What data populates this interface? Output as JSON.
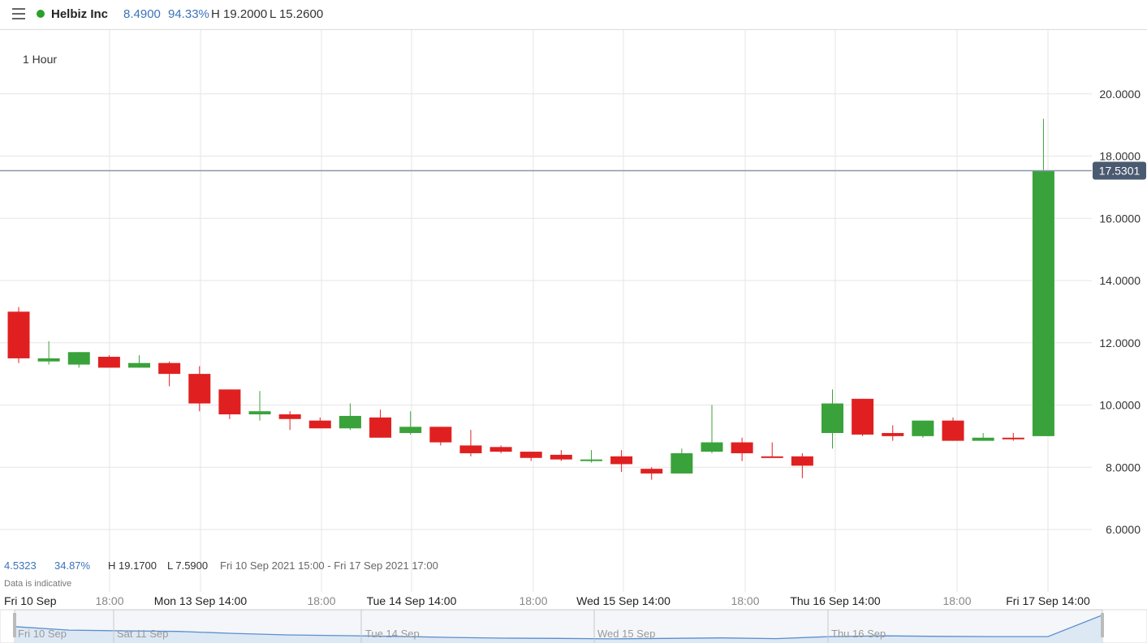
{
  "header": {
    "instrument_name": "Helbiz Inc",
    "price": "8.4900",
    "change_pct": "94.33%",
    "high": "H 19.2000",
    "low": "L 15.2600"
  },
  "interval_label": "1 Hour",
  "current_price_label": "17.5301",
  "range_summary": {
    "change": "4.5323",
    "change_pct": "34.87%",
    "high": "H 19.1700",
    "low": "L 7.5900",
    "range": "Fri 10 Sep 2021 15:00 - Fri 17 Sep 2021 17:00"
  },
  "disclaimer": "Data is indicative",
  "navigator_labels": [
    "Fri 10 Sep",
    "Sat 11 Sep",
    "Tue 14 Sep",
    "Wed 15 Sep",
    "Thu 16 Sep"
  ],
  "colors": {
    "up": "#3aa23a",
    "down": "#e02020",
    "accent": "#3b73b9",
    "price_tag": "#4a5a70"
  },
  "chart_data": {
    "type": "candlestick",
    "y_ticks": [
      "6.0000",
      "8.0000",
      "10.0000",
      "12.0000",
      "14.0000",
      "16.0000",
      "18.0000",
      "20.0000"
    ],
    "ylim": [
      4.2,
      22.0
    ],
    "x_ticks": [
      "Fri 10 Sep",
      "18:00",
      "Mon 13 Sep 14:00",
      "18:00",
      "Tue 14 Sep 14:00",
      "18:00",
      "Wed 15 Sep 14:00",
      "18:00",
      "Thu 16 Sep 14:00",
      "18:00",
      "Fri 17 Sep 14:00"
    ],
    "current_price": 17.5301,
    "candles": [
      {
        "o": 13.0,
        "h": 13.15,
        "l": 11.35,
        "c": 11.5
      },
      {
        "o": 11.4,
        "h": 12.05,
        "l": 11.3,
        "c": 11.5
      },
      {
        "o": 11.3,
        "h": 11.7,
        "l": 11.2,
        "c": 11.7
      },
      {
        "o": 11.55,
        "h": 11.6,
        "l": 11.2,
        "c": 11.2
      },
      {
        "o": 11.2,
        "h": 11.6,
        "l": 11.2,
        "c": 11.35
      },
      {
        "o": 11.35,
        "h": 11.4,
        "l": 10.6,
        "c": 11.0
      },
      {
        "o": 11.0,
        "h": 11.25,
        "l": 9.8,
        "c": 10.05
      },
      {
        "o": 10.5,
        "h": 10.5,
        "l": 9.55,
        "c": 9.7
      },
      {
        "o": 9.7,
        "h": 10.45,
        "l": 9.5,
        "c": 9.8
      },
      {
        "o": 9.7,
        "h": 9.8,
        "l": 9.2,
        "c": 9.55
      },
      {
        "o": 9.5,
        "h": 9.6,
        "l": 9.25,
        "c": 9.25
      },
      {
        "o": 9.25,
        "h": 10.05,
        "l": 9.2,
        "c": 9.65
      },
      {
        "o": 9.6,
        "h": 9.85,
        "l": 8.95,
        "c": 8.95
      },
      {
        "o": 9.1,
        "h": 9.8,
        "l": 9.05,
        "c": 9.3
      },
      {
        "o": 9.3,
        "h": 9.3,
        "l": 8.7,
        "c": 8.8
      },
      {
        "o": 8.7,
        "h": 9.2,
        "l": 8.35,
        "c": 8.45
      },
      {
        "o": 8.65,
        "h": 8.7,
        "l": 8.45,
        "c": 8.5
      },
      {
        "o": 8.5,
        "h": 8.5,
        "l": 8.2,
        "c": 8.3
      },
      {
        "o": 8.4,
        "h": 8.55,
        "l": 8.2,
        "c": 8.25
      },
      {
        "o": 8.2,
        "h": 8.55,
        "l": 8.15,
        "c": 8.25
      },
      {
        "o": 8.35,
        "h": 8.55,
        "l": 7.85,
        "c": 8.1
      },
      {
        "o": 7.95,
        "h": 8.0,
        "l": 7.6,
        "c": 7.8
      },
      {
        "o": 7.8,
        "h": 8.6,
        "l": 7.8,
        "c": 8.45
      },
      {
        "o": 8.5,
        "h": 10.0,
        "l": 8.45,
        "c": 8.8
      },
      {
        "o": 8.8,
        "h": 8.95,
        "l": 8.2,
        "c": 8.45
      },
      {
        "o": 8.35,
        "h": 8.8,
        "l": 8.33,
        "c": 8.33
      },
      {
        "o": 8.35,
        "h": 8.45,
        "l": 7.65,
        "c": 8.05
      },
      {
        "o": 9.1,
        "h": 10.5,
        "l": 8.6,
        "c": 10.05
      },
      {
        "o": 10.2,
        "h": 10.2,
        "l": 9.0,
        "c": 9.05
      },
      {
        "o": 9.1,
        "h": 9.35,
        "l": 8.85,
        "c": 9.0
      },
      {
        "o": 9.0,
        "h": 9.5,
        "l": 8.95,
        "c": 9.5
      },
      {
        "o": 9.5,
        "h": 9.6,
        "l": 8.85,
        "c": 8.85
      },
      {
        "o": 8.85,
        "h": 9.1,
        "l": 8.85,
        "c": 8.95
      },
      {
        "o": 8.95,
        "h": 9.1,
        "l": 8.85,
        "c": 8.9
      },
      {
        "o": 9.0,
        "h": 19.2,
        "l": 9.0,
        "c": 17.53
      }
    ],
    "navigator_series": [
      12.9,
      11.5,
      11.2,
      11.0,
      10.2,
      9.6,
      9.3,
      9.0,
      8.6,
      8.3,
      8.2,
      8.0,
      8.2,
      8.4,
      8.1,
      8.9,
      9.2,
      9.0,
      8.9,
      8.9,
      17.5
    ]
  }
}
